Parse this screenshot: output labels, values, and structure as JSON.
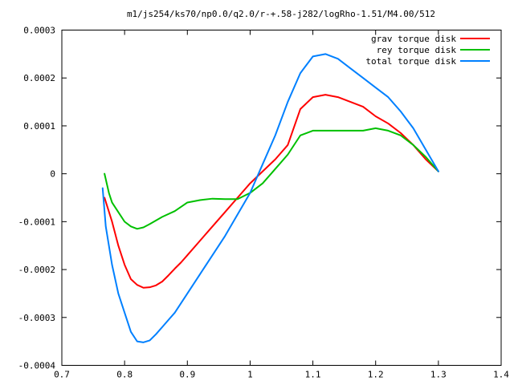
{
  "chart_data": {
    "type": "line",
    "title": "m1/js254/ks70/np0.0/q2.0/r-+.58-j282/logRho-1.51/M4.00/512",
    "xlabel": "",
    "ylabel": "",
    "xlim": [
      0.7,
      1.4
    ],
    "ylim": [
      -0.0004,
      0.0003
    ],
    "x_ticks": [
      {
        "value": 0.7,
        "label": "0.7"
      },
      {
        "value": 0.8,
        "label": "0.8"
      },
      {
        "value": 0.9,
        "label": "0.9"
      },
      {
        "value": 1.0,
        "label": "1"
      },
      {
        "value": 1.1,
        "label": "1.1"
      },
      {
        "value": 1.2,
        "label": "1.2"
      },
      {
        "value": 1.3,
        "label": "1.3"
      },
      {
        "value": 1.4,
        "label": "1.4"
      }
    ],
    "y_ticks": [
      {
        "value": -0.0004,
        "label": "-0.0004"
      },
      {
        "value": -0.0003,
        "label": "-0.0003"
      },
      {
        "value": -0.0002,
        "label": "-0.0002"
      },
      {
        "value": -0.0001,
        "label": "-0.0001"
      },
      {
        "value": 0,
        "label": "0"
      },
      {
        "value": 0.0001,
        "label": "0.0001"
      },
      {
        "value": 0.0002,
        "label": "0.0002"
      },
      {
        "value": 0.0003,
        "label": "0.0003"
      }
    ],
    "grid": false,
    "legend_position": "top-right",
    "series": [
      {
        "name": "grav torque disk",
        "color": "#ff0000",
        "x": [
          0.768,
          0.78,
          0.79,
          0.8,
          0.81,
          0.82,
          0.83,
          0.84,
          0.85,
          0.86,
          0.87,
          0.88,
          0.89,
          0.9,
          0.92,
          0.94,
          0.96,
          0.98,
          1.0,
          1.02,
          1.04,
          1.06,
          1.08,
          1.1,
          1.12,
          1.14,
          1.16,
          1.18,
          1.2,
          1.22,
          1.24,
          1.26,
          1.28,
          1.3
        ],
        "y": [
          -5e-05,
          -0.0001,
          -0.00015,
          -0.00019,
          -0.00022,
          -0.000232,
          -0.000238,
          -0.000237,
          -0.000233,
          -0.000225,
          -0.000212,
          -0.000198,
          -0.000185,
          -0.00017,
          -0.00014,
          -0.00011,
          -8e-05,
          -5e-05,
          -2e-05,
          5e-06,
          3e-05,
          6e-05,
          0.000135,
          0.00016,
          0.000165,
          0.00016,
          0.00015,
          0.00014,
          0.00012,
          0.000105,
          8.5e-05,
          6e-05,
          3e-05,
          5e-06
        ]
      },
      {
        "name": "rey torque disk",
        "color": "#00c000",
        "x": [
          0.768,
          0.775,
          0.78,
          0.79,
          0.8,
          0.81,
          0.82,
          0.83,
          0.84,
          0.86,
          0.88,
          0.9,
          0.92,
          0.94,
          0.96,
          0.98,
          1.0,
          1.02,
          1.04,
          1.06,
          1.08,
          1.1,
          1.12,
          1.14,
          1.16,
          1.18,
          1.2,
          1.22,
          1.24,
          1.26,
          1.28,
          1.3
        ],
        "y": [
          0.0,
          -4e-05,
          -6e-05,
          -8e-05,
          -0.0001,
          -0.00011,
          -0.000115,
          -0.000112,
          -0.000105,
          -9e-05,
          -7.8e-05,
          -6e-05,
          -5.5e-05,
          -5.2e-05,
          -5.3e-05,
          -5.3e-05,
          -4e-05,
          -2e-05,
          1e-05,
          4e-05,
          8e-05,
          9e-05,
          9e-05,
          9e-05,
          9e-05,
          9e-05,
          9.5e-05,
          9e-05,
          8e-05,
          6e-05,
          3.5e-05,
          5e-06
        ]
      },
      {
        "name": "total torque disk",
        "color": "#0080ff",
        "x": [
          0.765,
          0.77,
          0.78,
          0.79,
          0.8,
          0.81,
          0.82,
          0.83,
          0.84,
          0.85,
          0.86,
          0.87,
          0.88,
          0.9,
          0.92,
          0.94,
          0.96,
          0.98,
          1.0,
          1.02,
          1.04,
          1.06,
          1.08,
          1.1,
          1.12,
          1.14,
          1.16,
          1.18,
          1.2,
          1.22,
          1.24,
          1.26,
          1.28,
          1.3
        ],
        "y": [
          -3e-05,
          -0.00011,
          -0.00019,
          -0.00025,
          -0.00029,
          -0.00033,
          -0.00035,
          -0.000352,
          -0.000348,
          -0.000335,
          -0.00032,
          -0.000305,
          -0.00029,
          -0.00025,
          -0.00021,
          -0.00017,
          -0.00013,
          -8.5e-05,
          -4e-05,
          2e-05,
          8e-05,
          0.00015,
          0.00021,
          0.000245,
          0.00025,
          0.00024,
          0.00022,
          0.0002,
          0.00018,
          0.00016,
          0.00013,
          9.5e-05,
          5e-05,
          5e-06
        ]
      }
    ]
  }
}
